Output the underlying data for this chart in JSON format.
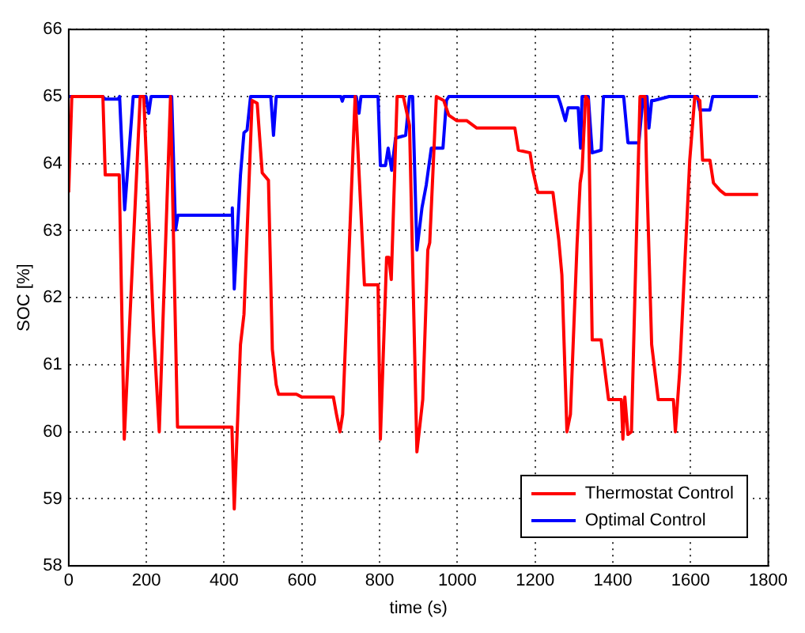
{
  "chart_data": {
    "type": "line",
    "xlabel": "time (s)",
    "ylabel": "SOC [%]",
    "xlim": [
      0,
      1800
    ],
    "ylim": [
      58,
      66
    ],
    "xticks": [
      0,
      200,
      400,
      600,
      800,
      1000,
      1200,
      1400,
      1600,
      1800
    ],
    "yticks": [
      58,
      59,
      60,
      61,
      62,
      63,
      64,
      65,
      66
    ],
    "grid": true,
    "legend": "bottom right",
    "line_style": "solid",
    "marker": "none",
    "series": [
      {
        "name": "Thermostat Control",
        "color": "#ff0000",
        "x": [
          0,
          8,
          88,
          94,
          130,
          143,
          184,
          193,
          219,
          233,
          262,
          280,
          420,
          426,
          442,
          451,
          472,
          485,
          498,
          514,
          524,
          534,
          540,
          586,
          599,
          681,
          689,
          698,
          705,
          737,
          741,
          761,
          796,
          802,
          818,
          824,
          830,
          845,
          861,
          877,
          896,
          911,
          924,
          929,
          946,
          965,
          978,
          998,
          1024,
          1050,
          1148,
          1157,
          1187,
          1194,
          1207,
          1246,
          1261,
          1269,
          1282,
          1291,
          1308,
          1316,
          1321,
          1330,
          1337,
          1347,
          1370,
          1389,
          1422,
          1426,
          1431,
          1439,
          1448,
          1470,
          1483,
          1487,
          1500,
          1517,
          1556,
          1561,
          1572,
          1598,
          1611,
          1624,
          1631,
          1650,
          1659,
          1676,
          1689,
          1774
        ],
        "values": [
          63.57,
          65,
          65,
          63.83,
          63.83,
          59.89,
          65,
          65,
          61.45,
          60,
          65,
          60.07,
          60.07,
          58.85,
          61.3,
          61.75,
          64.94,
          64.9,
          63.86,
          63.75,
          61.23,
          60.7,
          60.56,
          60.56,
          60.52,
          60.52,
          60.26,
          60,
          60.26,
          65,
          64.6,
          62.19,
          62.19,
          59.89,
          62.6,
          62.6,
          62.27,
          65,
          65,
          64.57,
          59.7,
          60.48,
          62.71,
          62.82,
          65,
          64.94,
          64.72,
          64.64,
          64.64,
          64.53,
          64.53,
          64.2,
          64.16,
          63.9,
          63.57,
          63.57,
          62.86,
          62.34,
          60,
          60.26,
          62.79,
          63.71,
          63.9,
          65,
          64.94,
          61.37,
          61.37,
          60.48,
          60.48,
          59.89,
          60.52,
          59.96,
          60,
          65,
          65,
          63.9,
          61.3,
          60.48,
          60.48,
          60,
          60.89,
          64.05,
          65,
          64.94,
          64.05,
          64.05,
          63.71,
          63.6,
          63.54,
          63.54
        ]
      },
      {
        "name": "Optimal Control",
        "color": "#0000ff",
        "x": [
          0,
          88,
          94,
          127,
          131,
          144,
          166,
          199,
          206,
          212,
          265,
          275,
          281,
          420,
          421,
          426,
          442,
          451,
          459,
          468,
          520,
          527,
          534,
          700,
          704,
          708,
          740,
          747,
          752,
          796,
          802,
          815,
          822,
          831,
          841,
          867,
          877,
          885,
          896,
          909,
          920,
          933,
          963,
          972,
          978,
          1259,
          1265,
          1278,
          1285,
          1311,
          1315,
          1317,
          1321,
          1337,
          1347,
          1370,
          1376,
          1428,
          1439,
          1467,
          1478,
          1488,
          1493,
          1500,
          1506,
          1545,
          1618,
          1624,
          1650,
          1657,
          1774
        ],
        "values": [
          65,
          65,
          64.96,
          64.96,
          65,
          63.31,
          65,
          65,
          64.75,
          65,
          65,
          63.01,
          63.23,
          63.23,
          63.34,
          62.13,
          63.83,
          64.46,
          64.5,
          65,
          65,
          64.42,
          65,
          65,
          64.93,
          65,
          65,
          64.75,
          65,
          65,
          63.97,
          63.97,
          64.23,
          63.9,
          64.38,
          64.42,
          65,
          65,
          62.71,
          63.34,
          63.68,
          64.23,
          64.23,
          64.94,
          65,
          65,
          64.9,
          64.64,
          64.83,
          64.83,
          64.42,
          64.23,
          65,
          65,
          64.16,
          64.2,
          65,
          65,
          64.31,
          64.31,
          65,
          65,
          64.53,
          64.94,
          64.94,
          65,
          65,
          64.8,
          64.8,
          65,
          65
        ]
      }
    ]
  }
}
